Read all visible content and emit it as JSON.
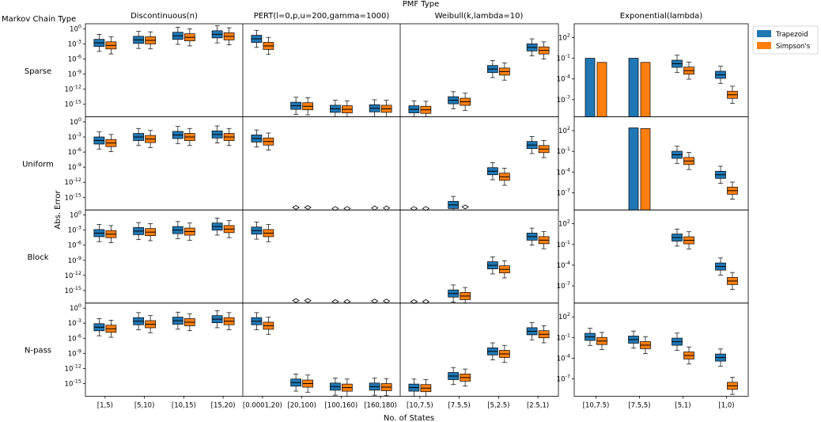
{
  "chart_data": {
    "type": "box",
    "title": "PMF Type",
    "row_axis_title": "Markov Chain Type",
    "xlabel": "No. of States",
    "ylabel": "Abs. Error",
    "y_scale": "log10",
    "y_range_log10": [
      -17.5,
      1.0
    ],
    "y_range_log10_exponential": [
      -9.5,
      4.0
    ],
    "legend": {
      "position": "top-right",
      "entries": [
        {
          "name": "Trapezoid",
          "color": "#1f77b4"
        },
        {
          "name": "Simpson's",
          "color": "#ff7f0e"
        }
      ]
    },
    "series_colors": {
      "Trapezoid": "#1f77b4",
      "Simpson's": "#ff7f0e"
    },
    "rows": [
      "Sparse",
      "Uniform",
      "Block",
      "N-pass"
    ],
    "groups": [
      {
        "title": "Discontinuous(n)",
        "categories": [
          "[1,5)",
          "[5,10)",
          "[10,15)",
          "[15,20)"
        ]
      },
      {
        "title": "PERT(l=0,p,u=200,gamma=1000)",
        "categories": [
          "[0.0001,20)",
          "[20,100)",
          "[100,160)",
          "[160,180)"
        ]
      },
      {
        "title": "Weibull(k,lambda=10)",
        "categories": [
          "[10,7.5)",
          "[7.5,5)",
          "[5,2.5)",
          "[2.5,1)"
        ]
      },
      {
        "title": "Exponential(lambda)",
        "categories": [
          "[10,7.5)",
          "[7.5,5)",
          "[5,1)",
          "[1,0)"
        ]
      }
    ],
    "y_ticks_log10": [
      0,
      -3,
      -6,
      -9,
      -12,
      -15
    ],
    "y_tick_labels": [
      "10^0",
      "10^-3",
      "10^-6",
      "10^-9",
      "10^-12",
      "10^-15"
    ],
    "y_ticks_log10_exponential": [
      2,
      -1,
      -4,
      -7
    ],
    "y_tick_labels_exponential": [
      "10^2",
      "10^-1",
      "10^-4",
      "10^-7"
    ],
    "median_log10": {
      "Sparse": [
        [
          [
            -2.8,
            -3.3
          ],
          [
            -2.2,
            -2.3
          ],
          [
            -1.4,
            -1.7
          ],
          [
            -1.1,
            -1.5
          ]
        ],
        [
          [
            -2.0,
            -3.4
          ],
          [
            -15.3,
            -15.4
          ],
          [
            -15.9,
            -16.0
          ],
          [
            -15.8,
            -15.9
          ]
        ],
        [
          [
            -16.0,
            -16.1
          ],
          [
            -14.2,
            -14.5
          ],
          [
            -8.0,
            -8.5
          ],
          [
            -3.7,
            -4.3
          ]
        ],
        [
          [
            -1.0,
            -1.6
          ],
          [
            -1.0,
            -1.6
          ],
          [
            -1.8,
            -2.8
          ],
          [
            -3.4,
            -6.3
          ]
        ]
      ],
      "Uniform": [
        [
          [
            -3.7,
            -4.2
          ],
          [
            -3.0,
            -3.4
          ],
          [
            -2.6,
            -3.0
          ],
          [
            -2.5,
            -3.0
          ]
        ],
        [
          [
            -3.3,
            -3.9
          ],
          [
            -17.0,
            -17.0
          ],
          [
            -17.2,
            -17.2
          ],
          [
            -17.1,
            -17.1
          ]
        ],
        [
          [
            -17.2,
            -17.2
          ],
          [
            -16.5,
            -16.9
          ],
          [
            -9.8,
            -10.9
          ],
          [
            -4.6,
            -5.4
          ]
        ],
        [
          [
            null,
            null
          ],
          [
            2.4,
            2.3
          ],
          [
            -1.5,
            -2.4
          ],
          [
            -4.4,
            -6.7
          ]
        ]
      ],
      "Block": [
        [
          [
            -3.6,
            -3.8
          ],
          [
            -3.2,
            -3.4
          ],
          [
            -3.0,
            -3.3
          ],
          [
            -2.3,
            -2.8
          ]
        ],
        [
          [
            -3.1,
            -3.6
          ],
          [
            -17.0,
            -17.0
          ],
          [
            -17.2,
            -17.2
          ],
          [
            -17.1,
            -17.1
          ]
        ],
        [
          [
            -17.2,
            -17.2
          ],
          [
            -15.6,
            -16.1
          ],
          [
            -10.0,
            -10.8
          ],
          [
            -4.3,
            -5.0
          ]
        ],
        [
          [
            null,
            null
          ],
          [
            null,
            null
          ],
          [
            0.0,
            -0.4
          ],
          [
            -4.2,
            -6.3
          ]
        ]
      ],
      "N-pass": [
        [
          [
            -3.8,
            -4.1
          ],
          [
            -2.6,
            -3.2
          ],
          [
            -2.5,
            -2.8
          ],
          [
            -2.2,
            -2.6
          ]
        ],
        [
          [
            -2.6,
            -3.5
          ],
          [
            -14.8,
            -15.0
          ],
          [
            -15.6,
            -15.8
          ],
          [
            -15.6,
            -15.7
          ]
        ],
        [
          [
            -15.8,
            -15.9
          ],
          [
            -13.5,
            -13.8
          ],
          [
            -8.6,
            -9.1
          ],
          [
            -4.6,
            -5.2
          ]
        ],
        [
          [
            -0.9,
            -1.5
          ],
          [
            -1.3,
            -2.1
          ],
          [
            -1.6,
            -3.6
          ],
          [
            -3.9,
            -8.0
          ]
        ]
      ]
    }
  }
}
